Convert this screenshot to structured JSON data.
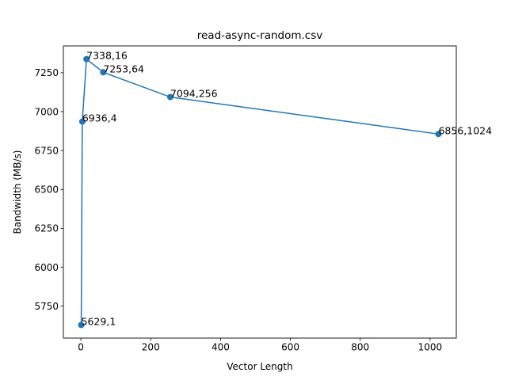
{
  "chart_data": {
    "type": "line",
    "title": "read-async-random.csv",
    "xlabel": "Vector Length",
    "ylabel": "Bandwidth (MB/s)",
    "xlim": [
      -50.15,
      1075.15
    ],
    "ylim": [
      5544.5,
      7422.5
    ],
    "x_ticks": [
      0,
      200,
      400,
      600,
      800,
      1000
    ],
    "y_ticks": [
      5750,
      6000,
      6250,
      6500,
      6750,
      7000,
      7250
    ],
    "x_tick_labels": [
      "0",
      "200",
      "400",
      "600",
      "800",
      "1000"
    ],
    "y_tick_labels": [
      "5750",
      "6000",
      "6250",
      "6500",
      "6750",
      "7000",
      "7250"
    ],
    "grid": false,
    "series": [
      {
        "color": "#1f77b4",
        "marker": "circle",
        "x": [
          1,
          4,
          16,
          64,
          256,
          1024
        ],
        "y": [
          5629,
          6936,
          7338,
          7253,
          7094,
          6856
        ]
      }
    ],
    "annotations": [
      "5629,1",
      "6936,4",
      "7338,16",
      "7253,64",
      "7094,256",
      "6856,1024"
    ]
  }
}
